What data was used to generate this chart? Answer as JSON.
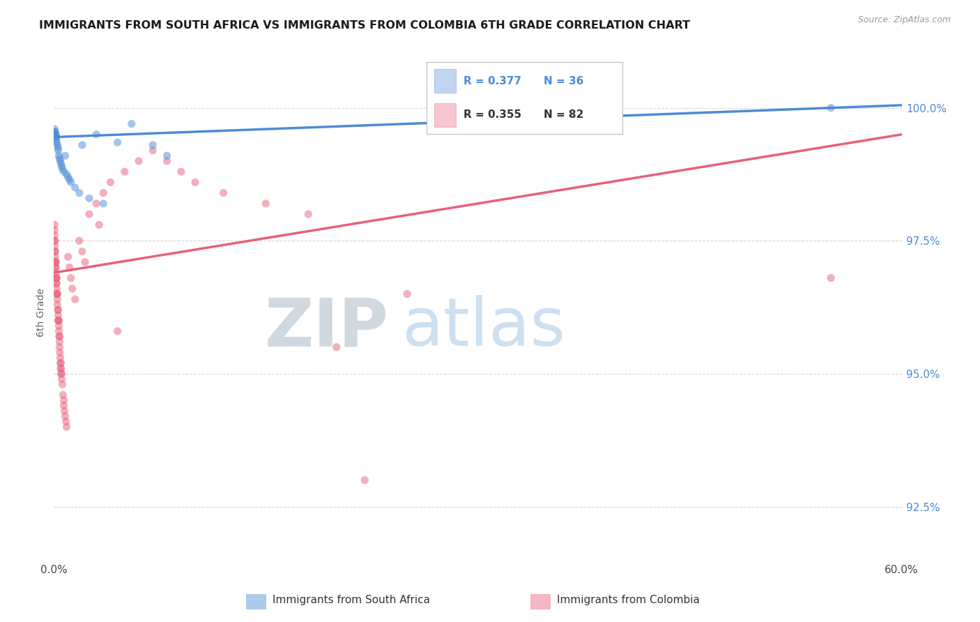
{
  "title": "IMMIGRANTS FROM SOUTH AFRICA VS IMMIGRANTS FROM COLOMBIA 6TH GRADE CORRELATION CHART",
  "source": "Source: ZipAtlas.com",
  "ylabel": "6th Grade",
  "right_yticks": [
    92.5,
    95.0,
    97.5,
    100.0
  ],
  "right_ytick_labels": [
    "92.5%",
    "95.0%",
    "97.5%",
    "100.0%"
  ],
  "blue_R": 0.377,
  "blue_N": 36,
  "pink_R": 0.355,
  "pink_N": 82,
  "blue_color": "#4d8bd5",
  "pink_color": "#e8607a",
  "blue_legend_label": "Immigrants from South Africa",
  "pink_legend_label": "Immigrants from Colombia",
  "xmin": 0.0,
  "xmax": 60.0,
  "ymin": 91.5,
  "ymax": 100.8,
  "blue_trend_x0": 0.0,
  "blue_trend_y0": 99.45,
  "blue_trend_x1": 60.0,
  "blue_trend_y1": 100.05,
  "pink_trend_x0": 0.0,
  "pink_trend_y0": 96.9,
  "pink_trend_x1": 60.0,
  "pink_trend_y1": 99.5,
  "blue_x": [
    0.05,
    0.05,
    0.05,
    0.1,
    0.1,
    0.1,
    0.15,
    0.15,
    0.2,
    0.2,
    0.25,
    0.3,
    0.3,
    0.35,
    0.4,
    0.45,
    0.5,
    0.55,
    0.6,
    0.7,
    0.8,
    0.9,
    1.0,
    1.1,
    1.2,
    1.5,
    1.8,
    2.0,
    2.5,
    3.0,
    3.5,
    4.5,
    5.5,
    7.0,
    8.0,
    55.0
  ],
  "blue_y": [
    99.5,
    99.55,
    99.6,
    99.45,
    99.5,
    99.55,
    99.4,
    99.5,
    99.35,
    99.45,
    99.3,
    99.2,
    99.25,
    99.1,
    99.05,
    99.0,
    98.95,
    98.9,
    98.85,
    98.8,
    99.1,
    98.75,
    98.7,
    98.65,
    98.6,
    98.5,
    98.4,
    99.3,
    98.3,
    99.5,
    98.2,
    99.35,
    99.7,
    99.3,
    99.1,
    100.0
  ],
  "pink_x": [
    0.05,
    0.05,
    0.05,
    0.05,
    0.05,
    0.08,
    0.08,
    0.1,
    0.1,
    0.1,
    0.12,
    0.12,
    0.15,
    0.15,
    0.15,
    0.15,
    0.18,
    0.18,
    0.2,
    0.2,
    0.2,
    0.2,
    0.22,
    0.25,
    0.25,
    0.25,
    0.28,
    0.3,
    0.3,
    0.3,
    0.32,
    0.35,
    0.35,
    0.35,
    0.38,
    0.4,
    0.4,
    0.4,
    0.42,
    0.45,
    0.45,
    0.48,
    0.5,
    0.5,
    0.5,
    0.55,
    0.55,
    0.6,
    0.65,
    0.7,
    0.7,
    0.75,
    0.8,
    0.85,
    0.9,
    1.0,
    1.1,
    1.2,
    1.3,
    1.5,
    1.8,
    2.0,
    2.2,
    2.5,
    3.0,
    3.5,
    4.0,
    5.0,
    6.0,
    7.0,
    8.0,
    9.0,
    10.0,
    12.0,
    15.0,
    18.0,
    20.0,
    22.0,
    25.0,
    55.0,
    3.2,
    4.5
  ],
  "pink_y": [
    97.4,
    97.5,
    97.6,
    97.7,
    97.8,
    97.3,
    97.5,
    97.1,
    97.2,
    97.3,
    97.0,
    97.1,
    96.8,
    96.9,
    97.0,
    97.1,
    96.7,
    96.8,
    96.5,
    96.6,
    96.7,
    96.8,
    96.5,
    96.3,
    96.4,
    96.5,
    96.2,
    96.0,
    96.1,
    96.2,
    96.0,
    95.8,
    95.9,
    96.0,
    95.7,
    95.5,
    95.6,
    95.7,
    95.4,
    95.2,
    95.3,
    95.1,
    95.0,
    95.1,
    95.2,
    94.9,
    95.0,
    94.8,
    94.6,
    94.4,
    94.5,
    94.3,
    94.2,
    94.1,
    94.0,
    97.2,
    97.0,
    96.8,
    96.6,
    96.4,
    97.5,
    97.3,
    97.1,
    98.0,
    98.2,
    98.4,
    98.6,
    98.8,
    99.0,
    99.2,
    99.0,
    98.8,
    98.6,
    98.4,
    98.2,
    98.0,
    95.5,
    93.0,
    96.5,
    96.8,
    97.8,
    95.8
  ]
}
